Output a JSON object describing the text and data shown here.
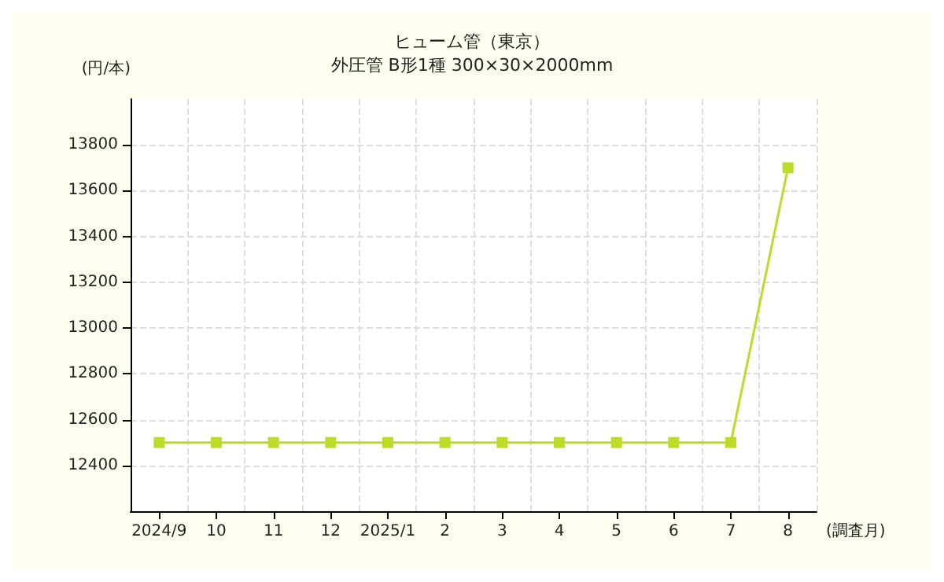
{
  "chart_data": {
    "type": "line",
    "title": "ヒューム管（東京）",
    "subtitle": "外圧管 B形1種 300×30×2000mm",
    "ylabel": "(円/本)",
    "xlabel": "(調査月)",
    "categories": [
      "2024/9",
      "10",
      "11",
      "12",
      "2025/1",
      "2",
      "3",
      "4",
      "5",
      "6",
      "7",
      "8"
    ],
    "series": [
      {
        "color": "#bcdc2a",
        "values": [
          12500,
          12500,
          12500,
          12500,
          12500,
          12500,
          12500,
          12500,
          12500,
          12500,
          12500,
          13700
        ]
      }
    ],
    "ylim": [
      12200,
      14000
    ],
    "yticks": [
      12400,
      12600,
      12800,
      13000,
      13200,
      13400,
      13600,
      13800
    ],
    "grid": true,
    "marker": "square",
    "line_style": "solid"
  }
}
